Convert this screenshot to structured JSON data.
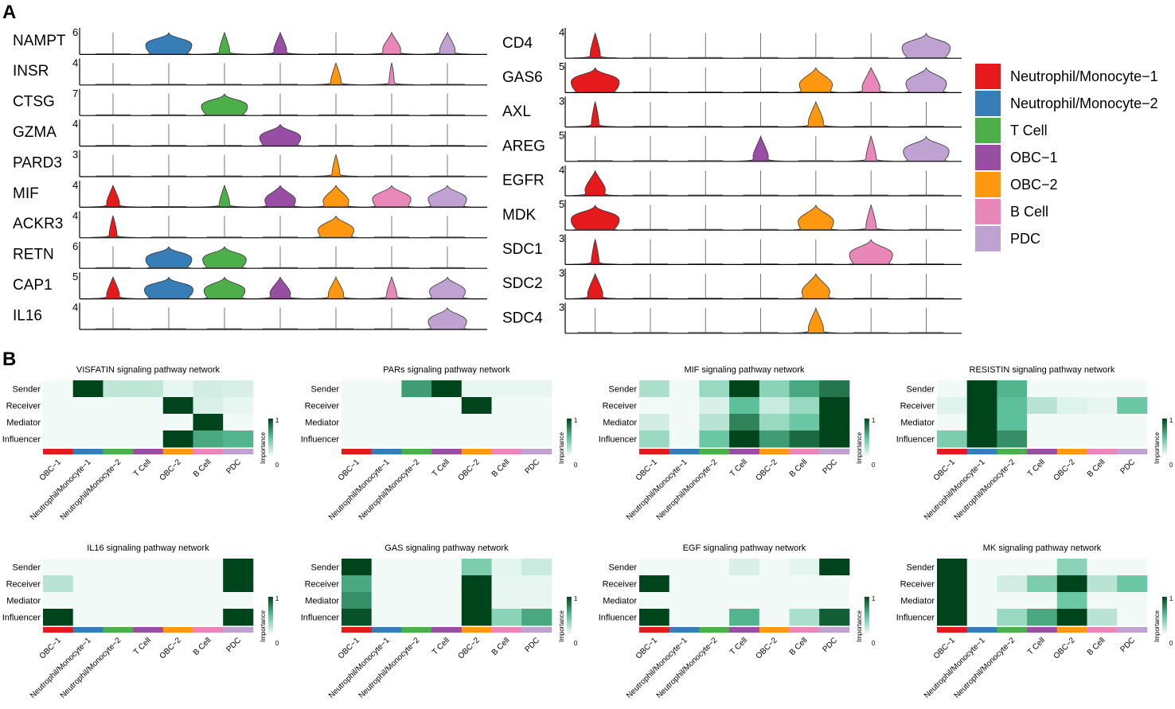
{
  "panels": {
    "a": "A",
    "b": "B"
  },
  "legend": {
    "title": "",
    "items": [
      {
        "label": "Neutrophil/Monocyte−1",
        "color": "#e41a1c"
      },
      {
        "label": "Neutrophil/Monocyte−2",
        "color": "#377eb8"
      },
      {
        "label": "T Cell",
        "color": "#4daf4a"
      },
      {
        "label": "OBC−1",
        "color": "#984ea3"
      },
      {
        "label": "OBC−2",
        "color": "#ff9810"
      },
      {
        "label": "B Cell",
        "color": "#e887b8"
      },
      {
        "label": "PDC",
        "color": "#c0a2d2"
      }
    ]
  },
  "chart_data": [
    {
      "type": "violin",
      "title": "",
      "clusters": [
        "Neutrophil/Monocyte−1",
        "Neutrophil/Monocyte−2",
        "T Cell",
        "OBC−1",
        "OBC−2",
        "B Cell",
        "PDC"
      ],
      "stacks": [
        {
          "genes": [
            {
              "name": "NAMPT",
              "ymax": "6",
              "widths": [
                0,
                0.9,
                0.2,
                0.25,
                0,
                0.35,
                0.3
              ]
            },
            {
              "name": "INSR",
              "ymax": "4",
              "widths": [
                0,
                0,
                0,
                0,
                0.2,
                0.1,
                0
              ]
            },
            {
              "name": "CTSG",
              "ymax": "7",
              "widths": [
                0,
                0,
                0.9,
                0,
                0,
                0,
                0
              ]
            },
            {
              "name": "GZMA",
              "ymax": "4",
              "widths": [
                0,
                0,
                0,
                0.8,
                0,
                0,
                0
              ]
            },
            {
              "name": "PARD3",
              "ymax": "3",
              "widths": [
                0,
                0,
                0,
                0,
                0.15,
                0,
                0
              ]
            },
            {
              "name": "MIF",
              "ymax": "4",
              "widths": [
                0.25,
                0,
                0.2,
                0.6,
                0.5,
                0.75,
                0.75
              ]
            },
            {
              "name": "ACKR3",
              "ymax": "4",
              "widths": [
                0.15,
                0,
                0,
                0,
                0.7,
                0,
                0
              ]
            },
            {
              "name": "RETN",
              "ymax": "6",
              "widths": [
                0,
                0.9,
                0.85,
                0,
                0,
                0,
                0
              ]
            },
            {
              "name": "CAP1",
              "ymax": "5",
              "widths": [
                0.25,
                0.95,
                0.8,
                0.4,
                0.3,
                0.2,
                0.7
              ]
            },
            {
              "name": "IL16",
              "ymax": "4",
              "widths": [
                0,
                0,
                0,
                0,
                0,
                0,
                0.75
              ]
            }
          ]
        },
        {
          "genes": [
            {
              "name": "CD4",
              "ymax": "4",
              "widths": [
                0.2,
                0,
                0,
                0,
                0,
                0,
                0.95
              ]
            },
            {
              "name": "GAS6",
              "ymax": "5",
              "widths": [
                0.95,
                0,
                0,
                0,
                0.65,
                0.35,
                0.8
              ]
            },
            {
              "name": "AXL",
              "ymax": "3",
              "widths": [
                0.15,
                0,
                0,
                0,
                0.3,
                0,
                0
              ]
            },
            {
              "name": "AREG",
              "ymax": "5",
              "widths": [
                0,
                0,
                0,
                0.3,
                0,
                0.2,
                0.9
              ]
            },
            {
              "name": "EGFR",
              "ymax": "4",
              "widths": [
                0.4,
                0,
                0,
                0,
                0,
                0,
                0
              ]
            },
            {
              "name": "MDK",
              "ymax": "5",
              "widths": [
                0.95,
                0,
                0,
                0,
                0.7,
                0.2,
                0
              ]
            },
            {
              "name": "SDC1",
              "ymax": "3",
              "widths": [
                0.15,
                0,
                0,
                0,
                0,
                0.85,
                0
              ]
            },
            {
              "name": "SDC2",
              "ymax": "3",
              "widths": [
                0.3,
                0,
                0,
                0,
                0.55,
                0,
                0
              ]
            },
            {
              "name": "SDC4",
              "ymax": "3",
              "widths": [
                0,
                0,
                0,
                0,
                0.3,
                0,
                0
              ]
            }
          ]
        }
      ]
    },
    {
      "type": "heatmap",
      "rows": [
        "Sender",
        "Receiver",
        "Mediator",
        "Influencer"
      ],
      "columns": [
        "OBC−1",
        "Neutrophil/Monocyte−1",
        "Neutrophil/Monocyte−2",
        "T Cell",
        "OBC−2",
        "B Cell",
        "PDC"
      ],
      "colorbar": {
        "label": "Importance",
        "min": "0",
        "max": "1"
      },
      "value_range": [
        0,
        1
      ],
      "heatmaps": [
        {
          "title": "VISFATIN signaling pathway network",
          "values": [
            [
              0.02,
              1.0,
              0.18,
              0.18,
              0.05,
              0.12,
              0.1
            ],
            [
              0.02,
              0.02,
              0.02,
              0.02,
              1.0,
              0.1,
              0.05
            ],
            [
              0.02,
              0.02,
              0.02,
              0.02,
              0.02,
              1.0,
              0.02
            ],
            [
              0.02,
              0.02,
              0.02,
              0.02,
              1.0,
              0.6,
              0.55
            ]
          ]
        },
        {
          "title": "PARs signaling pathway network",
          "values": [
            [
              0.02,
              0.02,
              0.65,
              1.0,
              0.05,
              0.05,
              0.05
            ],
            [
              0.02,
              0.02,
              0.02,
              0.02,
              1.0,
              0.02,
              0.02
            ],
            [
              0.02,
              0.02,
              0.02,
              0.02,
              0.02,
              0.02,
              0.02
            ],
            [
              0.02,
              0.02,
              0.02,
              0.02,
              0.02,
              0.02,
              0.02
            ]
          ]
        },
        {
          "title": "MIF signaling pathway network",
          "values": [
            [
              0.25,
              0.02,
              0.3,
              1.0,
              0.35,
              0.6,
              0.8
            ],
            [
              0.02,
              0.02,
              0.1,
              0.5,
              0.15,
              0.3,
              1.0
            ],
            [
              0.12,
              0.02,
              0.2,
              0.75,
              0.3,
              0.45,
              1.0
            ],
            [
              0.3,
              0.02,
              0.45,
              1.0,
              0.65,
              0.85,
              1.0
            ]
          ]
        },
        {
          "title": "RESISTIN signaling pathway network",
          "values": [
            [
              0.02,
              1.0,
              0.55,
              0.02,
              0.02,
              0.02,
              0.02
            ],
            [
              0.08,
              1.0,
              0.5,
              0.2,
              0.08,
              0.05,
              0.45
            ],
            [
              0.02,
              1.0,
              0.5,
              0.02,
              0.02,
              0.02,
              0.02
            ],
            [
              0.4,
              1.0,
              0.7,
              0.02,
              0.02,
              0.02,
              0.02
            ]
          ]
        },
        {
          "title": "IL16 signaling pathway network",
          "values": [
            [
              0.02,
              0.02,
              0.02,
              0.02,
              0.02,
              0.02,
              1.0
            ],
            [
              0.2,
              0.02,
              0.02,
              0.02,
              0.02,
              0.02,
              1.0
            ],
            [
              0.02,
              0.02,
              0.02,
              0.02,
              0.02,
              0.02,
              0.02
            ],
            [
              1.0,
              0.02,
              0.02,
              0.02,
              0.02,
              0.02,
              1.0
            ]
          ]
        },
        {
          "title": "GAS signaling pathway network",
          "values": [
            [
              1.0,
              0.02,
              0.02,
              0.02,
              0.4,
              0.06,
              0.15
            ],
            [
              0.6,
              0.02,
              0.02,
              0.02,
              1.0,
              0.05,
              0.05
            ],
            [
              0.7,
              0.02,
              0.02,
              0.02,
              1.0,
              0.05,
              0.05
            ],
            [
              0.95,
              0.02,
              0.02,
              0.02,
              1.0,
              0.35,
              0.6
            ]
          ]
        },
        {
          "title": "EGF signaling pathway network",
          "values": [
            [
              0.02,
              0.02,
              0.02,
              0.1,
              0.02,
              0.06,
              1.0
            ],
            [
              1.0,
              0.02,
              0.02,
              0.02,
              0.02,
              0.02,
              0.02
            ],
            [
              0.02,
              0.02,
              0.02,
              0.02,
              0.02,
              0.02,
              0.02
            ],
            [
              1.0,
              0.02,
              0.02,
              0.55,
              0.02,
              0.25,
              0.9
            ]
          ]
        },
        {
          "title": "MK signaling pathway network",
          "values": [
            [
              1.0,
              0.02,
              0.02,
              0.02,
              0.35,
              0.02,
              0.02
            ],
            [
              1.0,
              0.02,
              0.12,
              0.4,
              1.0,
              0.2,
              0.45
            ],
            [
              1.0,
              0.02,
              0.02,
              0.02,
              0.45,
              0.02,
              0.02
            ],
            [
              1.0,
              0.02,
              0.3,
              0.6,
              1.0,
              0.2,
              0.02
            ]
          ]
        }
      ]
    }
  ]
}
